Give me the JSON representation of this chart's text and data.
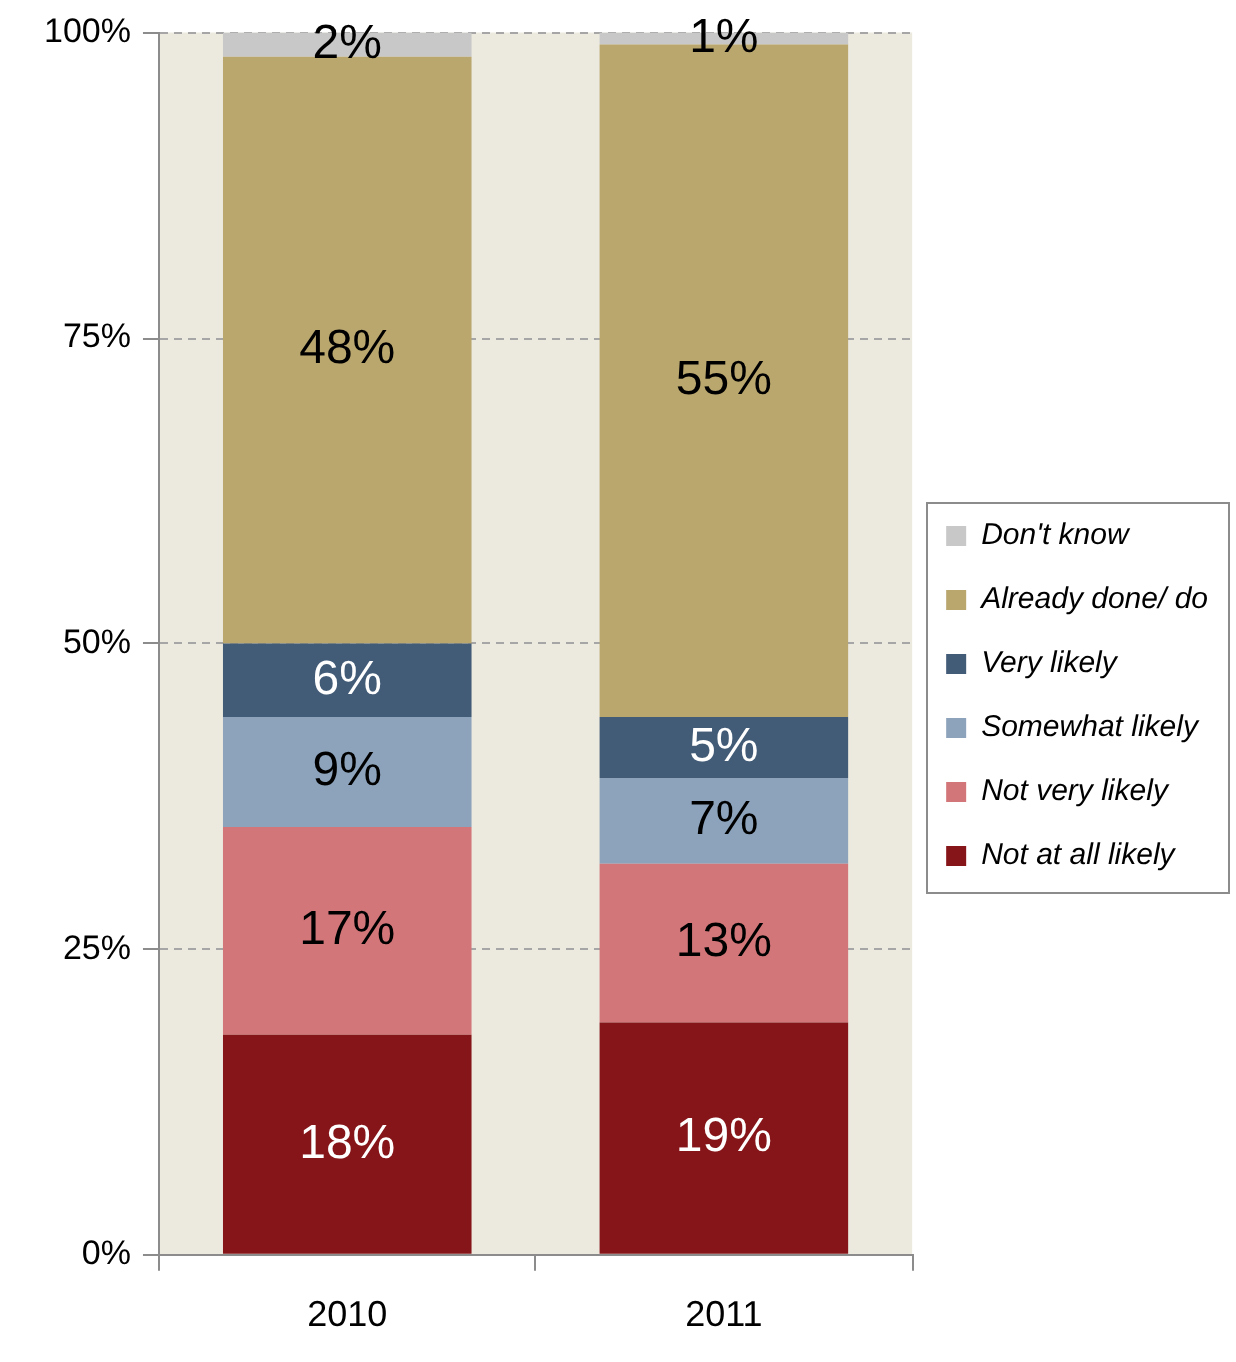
{
  "chart_data": {
    "type": "bar",
    "stacked": true,
    "categories": [
      "2010",
      "2011"
    ],
    "series": [
      {
        "name": "Not at all likely",
        "color": "#861519",
        "values": [
          18,
          19
        ],
        "value_labels": [
          "18%",
          "19%"
        ]
      },
      {
        "name": "Not very likely",
        "color": "#d27679",
        "values": [
          17,
          13
        ],
        "value_labels": [
          "17%",
          "13%"
        ]
      },
      {
        "name": "Somewhat likely",
        "color": "#8ca3bb",
        "values": [
          9,
          7
        ],
        "value_labels": [
          "9%",
          "7%"
        ]
      },
      {
        "name": "Very likely",
        "color": "#425b77",
        "values": [
          6,
          5
        ],
        "value_labels": [
          "6%",
          "5%"
        ]
      },
      {
        "name": "Already done/ do",
        "color": "#baa76e",
        "values": [
          48,
          55
        ],
        "value_labels": [
          "48%",
          "55%"
        ]
      },
      {
        "name": "Don't know",
        "color": "#c8c8c8",
        "values": [
          2,
          1
        ],
        "value_labels": [
          "2%",
          "1%"
        ]
      }
    ],
    "ylim": [
      0,
      100
    ],
    "yticks": [
      {
        "value": 0,
        "label": "0%"
      },
      {
        "value": 25,
        "label": "25%"
      },
      {
        "value": 50,
        "label": "50%"
      },
      {
        "value": 75,
        "label": "75%"
      },
      {
        "value": 100,
        "label": "100%"
      }
    ],
    "grid": "y",
    "legend": "right"
  }
}
